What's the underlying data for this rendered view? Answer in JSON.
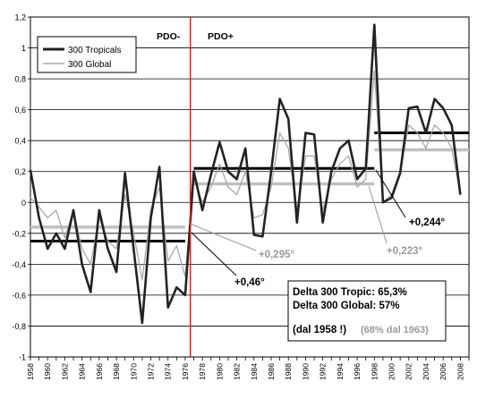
{
  "colors": {
    "tropicals": "#222222",
    "global": "#a8a8a8",
    "avg_dark": "#000000",
    "avg_light": "#c0c0c0",
    "divider": "#e0201a",
    "grid": "#000000",
    "annot_light": "#999999"
  },
  "chart_data": {
    "type": "line",
    "title": "",
    "xlabel": "",
    "ylabel": "",
    "ylim": [
      -1,
      1.2
    ],
    "yticks": [
      "1,2",
      "1",
      "0,8",
      "0,6",
      "0,4",
      "0,2",
      "0",
      "-0,2",
      "-0,4",
      "-0,6",
      "-0,8",
      "-1"
    ],
    "ytick_values": [
      1.2,
      1.0,
      0.8,
      0.6,
      0.4,
      0.2,
      0,
      -0.2,
      -0.4,
      -0.6,
      -0.8,
      -1.0
    ],
    "xlim": [
      1958,
      2009
    ],
    "xticks": [
      "1958",
      "1960",
      "1962",
      "1964",
      "1966",
      "1968",
      "1970",
      "1972",
      "1974",
      "1976",
      "1978",
      "1980",
      "1982",
      "1984",
      "1986",
      "1988",
      "1990",
      "1992",
      "1994",
      "1996",
      "1998",
      "2000",
      "2002",
      "2004",
      "2006",
      "2008"
    ],
    "grid": true,
    "legend": {
      "placement": "top-left",
      "entries": [
        "300 Tropicals",
        "300 Global"
      ]
    },
    "x": [
      1958,
      1959,
      1960,
      1961,
      1962,
      1963,
      1964,
      1965,
      1966,
      1967,
      1968,
      1969,
      1970,
      1971,
      1972,
      1973,
      1974,
      1975,
      1976,
      1977,
      1978,
      1979,
      1980,
      1981,
      1982,
      1983,
      1984,
      1985,
      1986,
      1987,
      1988,
      1989,
      1990,
      1991,
      1992,
      1993,
      1994,
      1995,
      1996,
      1997,
      1998,
      1999,
      2000,
      2001,
      2002,
      2003,
      2004,
      2005,
      2006,
      2007,
      2008
    ],
    "series": [
      {
        "name": "300 Tropicals",
        "values": [
          0.21,
          -0.1,
          -0.3,
          -0.2,
          -0.3,
          -0.05,
          -0.4,
          -0.58,
          -0.05,
          -0.3,
          -0.45,
          0.19,
          -0.3,
          -0.78,
          -0.1,
          0.23,
          -0.68,
          -0.55,
          -0.6,
          0.2,
          -0.05,
          0.18,
          0.39,
          0.2,
          0.15,
          0.35,
          -0.21,
          -0.22,
          0.2,
          0.67,
          0.54,
          -0.13,
          0.45,
          0.44,
          -0.13,
          0.2,
          0.35,
          0.4,
          0.15,
          0.22,
          1.15,
          0.0,
          0.03,
          0.19,
          0.61,
          0.62,
          0.45,
          0.67,
          0.61,
          0.5,
          0.05
        ]
      },
      {
        "name": "300 Global",
        "values": [
          0.03,
          -0.03,
          -0.1,
          -0.05,
          -0.23,
          -0.05,
          -0.3,
          -0.4,
          -0.1,
          -0.25,
          -0.3,
          0.05,
          -0.2,
          -0.5,
          -0.05,
          0.1,
          -0.38,
          -0.28,
          -0.48,
          0.15,
          0.0,
          0.1,
          0.25,
          0.1,
          0.05,
          0.2,
          -0.1,
          -0.08,
          0.1,
          0.45,
          0.35,
          -0.05,
          0.3,
          0.3,
          -0.05,
          0.15,
          0.25,
          0.3,
          0.1,
          0.15,
          0.85,
          0.0,
          0.05,
          0.2,
          0.5,
          0.45,
          0.35,
          0.5,
          0.45,
          0.35,
          0.05
        ]
      }
    ],
    "averages": [
      {
        "series": "300 Tropicals",
        "x": [
          1958,
          1976
        ],
        "y": -0.25
      },
      {
        "series": "300 Global",
        "x": [
          1958,
          1976
        ],
        "y": -0.16
      },
      {
        "series": "300 Tropicals",
        "x": [
          1977,
          1998
        ],
        "y": 0.22
      },
      {
        "series": "300 Global",
        "x": [
          1977,
          1998
        ],
        "y": 0.12
      },
      {
        "series": "300 Tropicals",
        "x": [
          1998,
          2009
        ],
        "y": 0.45
      },
      {
        "series": "300 Global",
        "x": [
          1998,
          2009
        ],
        "y": 0.34
      }
    ],
    "divider_x": 1976.6,
    "annotations": {
      "pdo_minus": "PDO-",
      "pdo_plus": "PDO+",
      "diff_046": "+0,46°",
      "diff_0295": "+0,295°",
      "diff_0244": "+0,244°",
      "diff_0223": "+0,223°",
      "delta_tropic": "Delta 300 Tropic: 65,3%",
      "delta_global": "Delta 300 Global: 57%",
      "dal1958": "(dal 1958 !)",
      "dal1963": "(68% dal 1963)"
    }
  }
}
